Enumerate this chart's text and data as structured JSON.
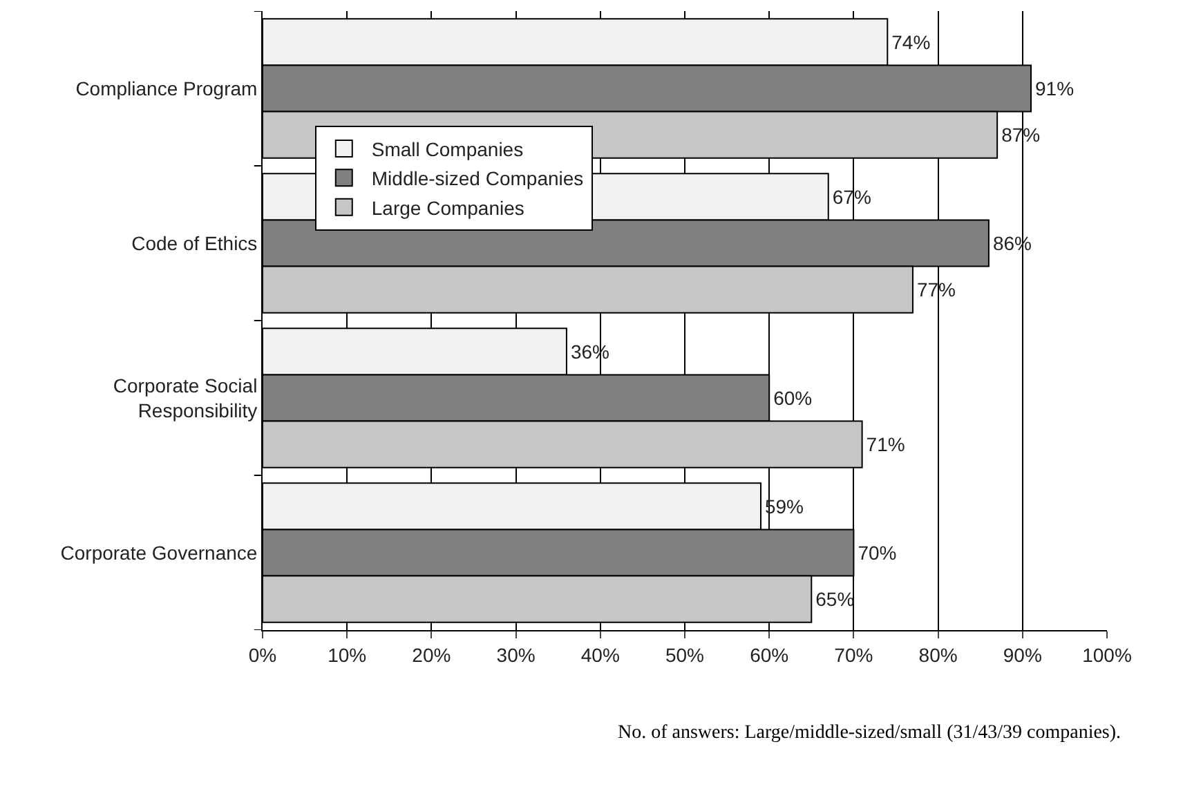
{
  "chart_data": {
    "type": "bar",
    "orientation": "horizontal",
    "categories": [
      "Compliance Program",
      "Code of Ethics",
      "Corporate Social Responsibility",
      "Corporate Governance"
    ],
    "series": [
      {
        "name": "Small Companies",
        "color": "#f2f2f2",
        "values": [
          74,
          67,
          36,
          59
        ],
        "value_labels": [
          "74%",
          "67%",
          "36%",
          "59%"
        ]
      },
      {
        "name": "Middle-sized Companies",
        "color": "#808080",
        "values": [
          91,
          86,
          60,
          70
        ],
        "value_labels": [
          "91%",
          "86%",
          "60%",
          "70%"
        ]
      },
      {
        "name": "Large Companies",
        "color": "#c6c6c6",
        "values": [
          87,
          77,
          71,
          65
        ],
        "value_labels": [
          "87%",
          "77%",
          "71%",
          "65%"
        ]
      }
    ],
    "xlim": [
      0,
      100
    ],
    "xticks": [
      {
        "value": 0,
        "label": "0%"
      },
      {
        "value": 10,
        "label": "10%"
      },
      {
        "value": 20,
        "label": "20%"
      },
      {
        "value": 30,
        "label": "30%"
      },
      {
        "value": 40,
        "label": "40%"
      },
      {
        "value": 50,
        "label": "50%"
      },
      {
        "value": 60,
        "label": "60%"
      },
      {
        "value": 70,
        "label": "70%"
      },
      {
        "value": 80,
        "label": "80%"
      },
      {
        "value": 90,
        "label": "90%"
      },
      {
        "value": 100,
        "label": "100%"
      }
    ],
    "grid": "x",
    "legend": "top left",
    "annotations": [
      "No. of answers: Large/middle-sized/small (31/43/39 companies)."
    ]
  }
}
